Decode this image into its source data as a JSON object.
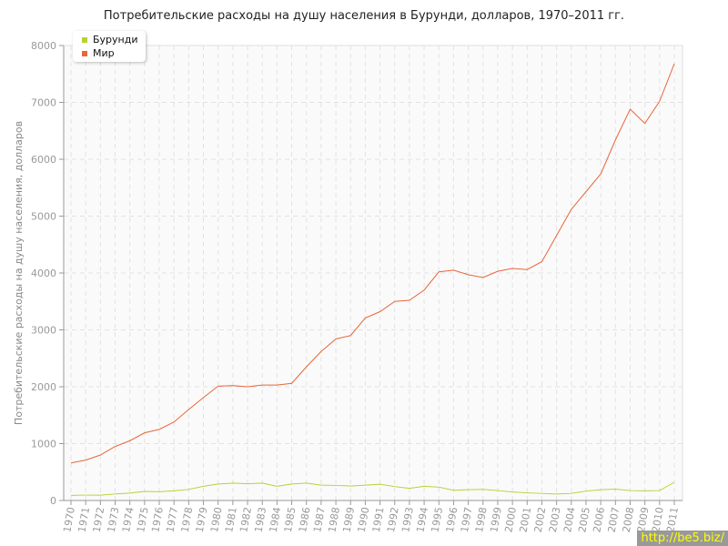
{
  "chart_data": {
    "type": "line",
    "title": "Потребительские расходы на душу населения в Бурунди, долларов, 1970–2011 гг.",
    "xlabel": "",
    "ylabel": "Потребительские расходы на душу населения, долларов",
    "ylim": [
      0,
      8000
    ],
    "yticks": [
      0,
      1000,
      2000,
      3000,
      4000,
      5000,
      6000,
      7000,
      8000
    ],
    "grid": true,
    "legend_position": "top-left",
    "x": [
      1970,
      1971,
      1972,
      1973,
      1974,
      1975,
      1976,
      1977,
      1978,
      1979,
      1980,
      1981,
      1982,
      1983,
      1984,
      1985,
      1986,
      1987,
      1988,
      1989,
      1990,
      1991,
      1992,
      1993,
      1994,
      1995,
      1996,
      1997,
      1998,
      1999,
      2000,
      2001,
      2002,
      2003,
      2004,
      2005,
      2006,
      2007,
      2008,
      2009,
      2010,
      2011
    ],
    "series": [
      {
        "name": "Бурунди",
        "color": "#b5d334",
        "values": [
          90,
          95,
          95,
          115,
          130,
          160,
          155,
          170,
          195,
          250,
          290,
          305,
          295,
          305,
          250,
          290,
          305,
          270,
          265,
          255,
          270,
          285,
          245,
          215,
          250,
          235,
          180,
          190,
          195,
          175,
          150,
          135,
          125,
          115,
          125,
          165,
          190,
          200,
          175,
          170,
          175,
          320
        ]
      },
      {
        "name": "Мир",
        "color": "#e8663a",
        "values": [
          660,
          710,
          800,
          950,
          1050,
          1190,
          1250,
          1380,
          1600,
          1810,
          2010,
          2020,
          2000,
          2030,
          2030,
          2060,
          2350,
          2620,
          2840,
          2900,
          3210,
          3320,
          3500,
          3520,
          3700,
          4020,
          4050,
          3970,
          3920,
          4030,
          4080,
          4060,
          4200,
          4660,
          5120,
          5430,
          5740,
          6340,
          6880,
          6630,
          7020,
          7680
        ]
      }
    ]
  },
  "watermark": "http://be5.biz/"
}
